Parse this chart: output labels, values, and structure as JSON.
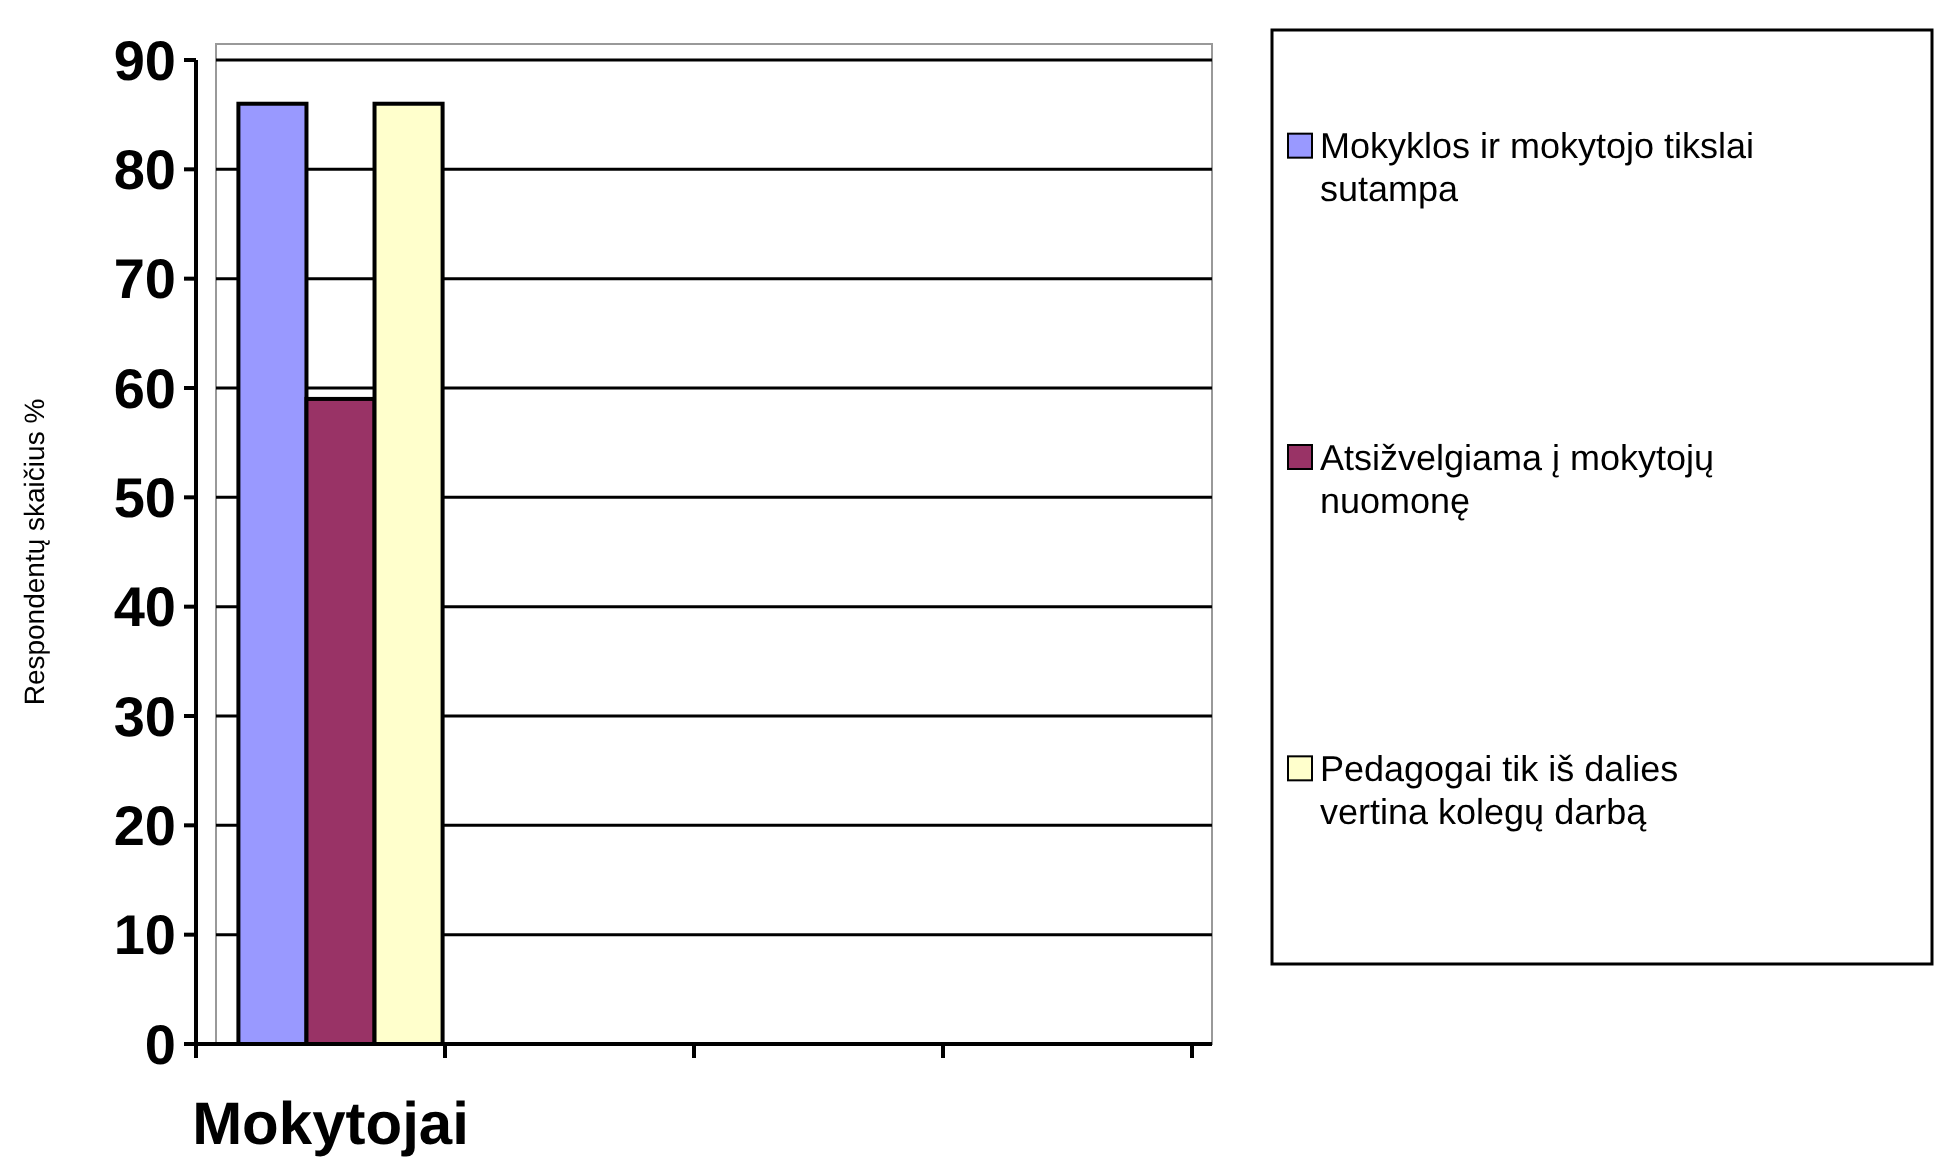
{
  "chart_data": {
    "type": "bar",
    "ylabel": "Respondentų skaičius %",
    "categories": [
      "Mokytojai",
      null,
      null,
      null
    ],
    "series": [
      {
        "name": "Mokyklos ir mokytojo tikslai sutampa",
        "color": "#9999ff",
        "values": [
          86,
          null,
          null,
          null
        ]
      },
      {
        "name": "Atsižvelgiama į mokytojų nuomonę",
        "color": "#993366",
        "values": [
          59,
          null,
          null,
          null
        ]
      },
      {
        "name": "Pedagogai tik iš dalies vertina kolegų darbą",
        "color": "#ffffcc",
        "values": [
          86,
          null,
          null,
          null
        ]
      }
    ],
    "ylim": [
      0,
      90
    ],
    "yticks": [
      0,
      10,
      20,
      30,
      40,
      50,
      60,
      70,
      80,
      90
    ],
    "grid": "y",
    "legend": "right"
  }
}
